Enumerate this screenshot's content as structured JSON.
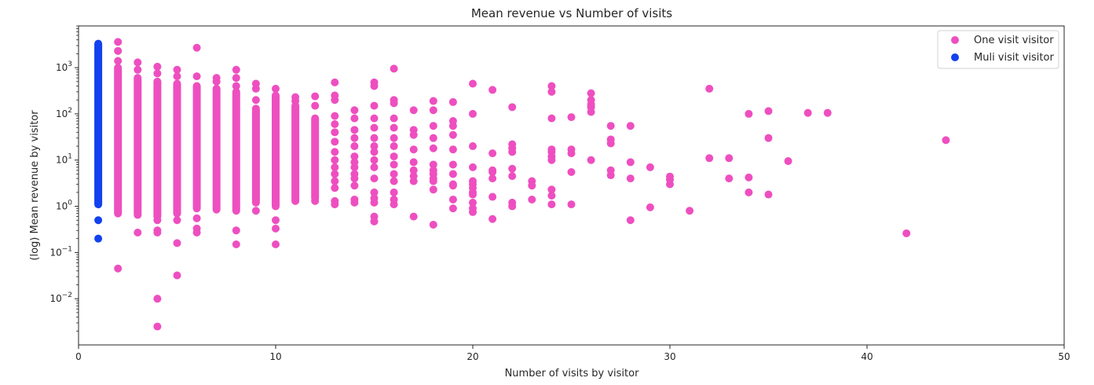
{
  "chart_data": {
    "type": "scatter",
    "title": "Mean revenue vs Number of visits",
    "xlabel": "Number of visits by visitor",
    "ylabel": "(log) Mean revenue by visitor",
    "xlim": [
      0,
      50
    ],
    "ylim": [
      0.001,
      8000
    ],
    "yscale": "log",
    "grid": false,
    "legend": "top-right",
    "x_ticks": [
      0,
      10,
      20,
      30,
      40,
      50
    ],
    "x_tick_labels": [
      "0",
      "10",
      "20",
      "30",
      "40",
      "50"
    ],
    "y_ticks": [
      0.01,
      0.1,
      1,
      10,
      100,
      1000
    ],
    "y_tick_labels": [
      {
        "base": "10",
        "exp": "−2"
      },
      {
        "base": "10",
        "exp": "−1"
      },
      {
        "base": "10",
        "exp": "0"
      },
      {
        "base": "10",
        "exp": "1"
      },
      {
        "base": "10",
        "exp": "2"
      },
      {
        "base": "10",
        "exp": "3"
      }
    ],
    "series": [
      {
        "name": "One visit visitor",
        "color": "#ee4fc0",
        "bands": [
          {
            "x": 2,
            "range": [
              0.7,
              1000
            ]
          },
          {
            "x": 3,
            "range": [
              0.65,
              600
            ]
          },
          {
            "x": 4,
            "range": [
              0.6,
              500
            ]
          },
          {
            "x": 5,
            "range": [
              0.7,
              450
            ]
          },
          {
            "x": 6,
            "range": [
              0.9,
              400
            ]
          },
          {
            "x": 7,
            "range": [
              0.85,
              350
            ]
          },
          {
            "x": 8,
            "range": [
              0.8,
              300
            ]
          },
          {
            "x": 9,
            "range": [
              1.2,
              130
            ]
          },
          {
            "x": 10,
            "range": [
              1.0,
              250
            ]
          },
          {
            "x": 11,
            "range": [
              1.3,
              150
            ]
          },
          {
            "x": 12,
            "range": [
              1.5,
              80
            ]
          }
        ],
        "points": [
          {
            "x": 2,
            "y": 3600
          },
          {
            "x": 2,
            "y": 2300
          },
          {
            "x": 2,
            "y": 1400
          },
          {
            "x": 2,
            "y": 0.045
          },
          {
            "x": 3,
            "y": 1300
          },
          {
            "x": 3,
            "y": 900
          },
          {
            "x": 3,
            "y": 0.27
          },
          {
            "x": 4,
            "y": 1050
          },
          {
            "x": 4,
            "y": 750
          },
          {
            "x": 4,
            "y": 0.5
          },
          {
            "x": 4,
            "y": 0.3
          },
          {
            "x": 4,
            "y": 0.27
          },
          {
            "x": 4,
            "y": 0.01
          },
          {
            "x": 4,
            "y": 0.0025
          },
          {
            "x": 5,
            "y": 900
          },
          {
            "x": 5,
            "y": 650
          },
          {
            "x": 5,
            "y": 0.5
          },
          {
            "x": 5,
            "y": 0.16
          },
          {
            "x": 5,
            "y": 0.032
          },
          {
            "x": 6,
            "y": 2700
          },
          {
            "x": 6,
            "y": 650
          },
          {
            "x": 6,
            "y": 0.55
          },
          {
            "x": 6,
            "y": 0.33
          },
          {
            "x": 6,
            "y": 0.27
          },
          {
            "x": 7,
            "y": 600
          },
          {
            "x": 7,
            "y": 500
          },
          {
            "x": 8,
            "y": 900
          },
          {
            "x": 8,
            "y": 600
          },
          {
            "x": 8,
            "y": 400
          },
          {
            "x": 8,
            "y": 0.3
          },
          {
            "x": 8,
            "y": 0.15
          },
          {
            "x": 9,
            "y": 450
          },
          {
            "x": 9,
            "y": 350
          },
          {
            "x": 9,
            "y": 200
          },
          {
            "x": 9,
            "y": 0.8
          },
          {
            "x": 10,
            "y": 350
          },
          {
            "x": 10,
            "y": 0.5
          },
          {
            "x": 10,
            "y": 0.33
          },
          {
            "x": 10,
            "y": 0.15
          },
          {
            "x": 11,
            "y": 230
          },
          {
            "x": 11,
            "y": 190
          },
          {
            "x": 12,
            "y": 240
          },
          {
            "x": 12,
            "y": 150
          },
          {
            "x": 12,
            "y": 1.3
          },
          {
            "x": 13,
            "y": 480
          },
          {
            "x": 13,
            "y": 250
          },
          {
            "x": 13,
            "y": 200
          },
          {
            "x": 13,
            "y": 90
          },
          {
            "x": 13,
            "y": 60
          },
          {
            "x": 13,
            "y": 40
          },
          {
            "x": 13,
            "y": 25
          },
          {
            "x": 13,
            "y": 15
          },
          {
            "x": 13,
            "y": 10
          },
          {
            "x": 13,
            "y": 7
          },
          {
            "x": 13,
            "y": 5
          },
          {
            "x": 13,
            "y": 3.5
          },
          {
            "x": 13,
            "y": 2.5
          },
          {
            "x": 13,
            "y": 1.3
          },
          {
            "x": 13,
            "y": 1.1
          },
          {
            "x": 14,
            "y": 120
          },
          {
            "x": 14,
            "y": 80
          },
          {
            "x": 14,
            "y": 45
          },
          {
            "x": 14,
            "y": 30
          },
          {
            "x": 14,
            "y": 20
          },
          {
            "x": 14,
            "y": 12
          },
          {
            "x": 14,
            "y": 9
          },
          {
            "x": 14,
            "y": 7
          },
          {
            "x": 14,
            "y": 5
          },
          {
            "x": 14,
            "y": 4
          },
          {
            "x": 14,
            "y": 2.8
          },
          {
            "x": 14,
            "y": 1.4
          },
          {
            "x": 14,
            "y": 1.2
          },
          {
            "x": 15,
            "y": 480
          },
          {
            "x": 15,
            "y": 400
          },
          {
            "x": 15,
            "y": 150
          },
          {
            "x": 15,
            "y": 80
          },
          {
            "x": 15,
            "y": 50
          },
          {
            "x": 15,
            "y": 30
          },
          {
            "x": 15,
            "y": 20
          },
          {
            "x": 15,
            "y": 15
          },
          {
            "x": 15,
            "y": 10
          },
          {
            "x": 15,
            "y": 7
          },
          {
            "x": 15,
            "y": 4
          },
          {
            "x": 15,
            "y": 2
          },
          {
            "x": 15,
            "y": 1.5
          },
          {
            "x": 15,
            "y": 1.2
          },
          {
            "x": 15,
            "y": 0.6
          },
          {
            "x": 15,
            "y": 0.47
          },
          {
            "x": 16,
            "y": 950
          },
          {
            "x": 16,
            "y": 200
          },
          {
            "x": 16,
            "y": 170
          },
          {
            "x": 16,
            "y": 80
          },
          {
            "x": 16,
            "y": 50
          },
          {
            "x": 16,
            "y": 30
          },
          {
            "x": 16,
            "y": 20
          },
          {
            "x": 16,
            "y": 12
          },
          {
            "x": 16,
            "y": 8
          },
          {
            "x": 16,
            "y": 5
          },
          {
            "x": 16,
            "y": 3.5
          },
          {
            "x": 16,
            "y": 2
          },
          {
            "x": 16,
            "y": 1.4
          },
          {
            "x": 16,
            "y": 1.1
          },
          {
            "x": 17,
            "y": 120
          },
          {
            "x": 17,
            "y": 45
          },
          {
            "x": 17,
            "y": 35
          },
          {
            "x": 17,
            "y": 17
          },
          {
            "x": 17,
            "y": 9
          },
          {
            "x": 17,
            "y": 6
          },
          {
            "x": 17,
            "y": 4.5
          },
          {
            "x": 17,
            "y": 3.5
          },
          {
            "x": 17,
            "y": 0.6
          },
          {
            "x": 18,
            "y": 190
          },
          {
            "x": 18,
            "y": 120
          },
          {
            "x": 18,
            "y": 55
          },
          {
            "x": 18,
            "y": 30
          },
          {
            "x": 18,
            "y": 18
          },
          {
            "x": 18,
            "y": 8
          },
          {
            "x": 18,
            "y": 6
          },
          {
            "x": 18,
            "y": 5
          },
          {
            "x": 18,
            "y": 4
          },
          {
            "x": 18,
            "y": 3.5
          },
          {
            "x": 18,
            "y": 2.3
          },
          {
            "x": 18,
            "y": 0.4
          },
          {
            "x": 19,
            "y": 180
          },
          {
            "x": 19,
            "y": 70
          },
          {
            "x": 19,
            "y": 55
          },
          {
            "x": 19,
            "y": 35
          },
          {
            "x": 19,
            "y": 17
          },
          {
            "x": 19,
            "y": 8
          },
          {
            "x": 19,
            "y": 5
          },
          {
            "x": 19,
            "y": 3
          },
          {
            "x": 19,
            "y": 2.8
          },
          {
            "x": 19,
            "y": 1.4
          },
          {
            "x": 19,
            "y": 0.9
          },
          {
            "x": 20,
            "y": 450
          },
          {
            "x": 20,
            "y": 100
          },
          {
            "x": 20,
            "y": 20
          },
          {
            "x": 20,
            "y": 7
          },
          {
            "x": 20,
            "y": 3.5
          },
          {
            "x": 20,
            "y": 3
          },
          {
            "x": 20,
            "y": 2.5
          },
          {
            "x": 20,
            "y": 2
          },
          {
            "x": 20,
            "y": 1.8
          },
          {
            "x": 20,
            "y": 1.2
          },
          {
            "x": 20,
            "y": 0.9
          },
          {
            "x": 20,
            "y": 0.75
          },
          {
            "x": 21,
            "y": 330
          },
          {
            "x": 21,
            "y": 14
          },
          {
            "x": 21,
            "y": 6
          },
          {
            "x": 21,
            "y": 5.5
          },
          {
            "x": 21,
            "y": 4
          },
          {
            "x": 21,
            "y": 1.6
          },
          {
            "x": 21,
            "y": 0.53
          },
          {
            "x": 22,
            "y": 140
          },
          {
            "x": 22,
            "y": 22
          },
          {
            "x": 22,
            "y": 18
          },
          {
            "x": 22,
            "y": 15
          },
          {
            "x": 22,
            "y": 6.5
          },
          {
            "x": 22,
            "y": 4.5
          },
          {
            "x": 22,
            "y": 1.2
          },
          {
            "x": 22,
            "y": 1.0
          },
          {
            "x": 23,
            "y": 3.5
          },
          {
            "x": 23,
            "y": 2.8
          },
          {
            "x": 23,
            "y": 1.4
          },
          {
            "x": 24,
            "y": 400
          },
          {
            "x": 24,
            "y": 300
          },
          {
            "x": 24,
            "y": 80
          },
          {
            "x": 24,
            "y": 17
          },
          {
            "x": 24,
            "y": 15
          },
          {
            "x": 24,
            "y": 12
          },
          {
            "x": 24,
            "y": 10
          },
          {
            "x": 24,
            "y": 2.3
          },
          {
            "x": 24,
            "y": 1.7
          },
          {
            "x": 24,
            "y": 1.1
          },
          {
            "x": 25,
            "y": 85
          },
          {
            "x": 25,
            "y": 17
          },
          {
            "x": 25,
            "y": 14
          },
          {
            "x": 25,
            "y": 5.5
          },
          {
            "x": 25,
            "y": 1.1
          },
          {
            "x": 26,
            "y": 280
          },
          {
            "x": 26,
            "y": 200
          },
          {
            "x": 26,
            "y": 160
          },
          {
            "x": 26,
            "y": 140
          },
          {
            "x": 26,
            "y": 110
          },
          {
            "x": 26,
            "y": 10
          },
          {
            "x": 27,
            "y": 55
          },
          {
            "x": 27,
            "y": 28
          },
          {
            "x": 27,
            "y": 23
          },
          {
            "x": 27,
            "y": 6
          },
          {
            "x": 27,
            "y": 4.7
          },
          {
            "x": 28,
            "y": 55
          },
          {
            "x": 28,
            "y": 9
          },
          {
            "x": 28,
            "y": 4
          },
          {
            "x": 28,
            "y": 0.5
          },
          {
            "x": 29,
            "y": 7
          },
          {
            "x": 29,
            "y": 0.95
          },
          {
            "x": 30,
            "y": 4.4
          },
          {
            "x": 30,
            "y": 3.8
          },
          {
            "x": 30,
            "y": 3
          },
          {
            "x": 31,
            "y": 0.8
          },
          {
            "x": 32,
            "y": 350
          },
          {
            "x": 32,
            "y": 11
          },
          {
            "x": 33,
            "y": 11
          },
          {
            "x": 33,
            "y": 4
          },
          {
            "x": 34,
            "y": 100
          },
          {
            "x": 34,
            "y": 4.2
          },
          {
            "x": 34,
            "y": 2
          },
          {
            "x": 35,
            "y": 115
          },
          {
            "x": 35,
            "y": 30
          },
          {
            "x": 35,
            "y": 1.8
          },
          {
            "x": 36,
            "y": 9.5
          },
          {
            "x": 37,
            "y": 105
          },
          {
            "x": 38,
            "y": 105
          },
          {
            "x": 42,
            "y": 0.26
          },
          {
            "x": 44,
            "y": 27
          }
        ]
      },
      {
        "name": "Muli visit visitor",
        "color": "#1241ee",
        "bands": [
          {
            "x": 1,
            "range": [
              1.1,
              3300
            ]
          }
        ],
        "points": [
          {
            "x": 1,
            "y": 0.5
          },
          {
            "x": 1,
            "y": 0.2
          }
        ]
      }
    ]
  }
}
